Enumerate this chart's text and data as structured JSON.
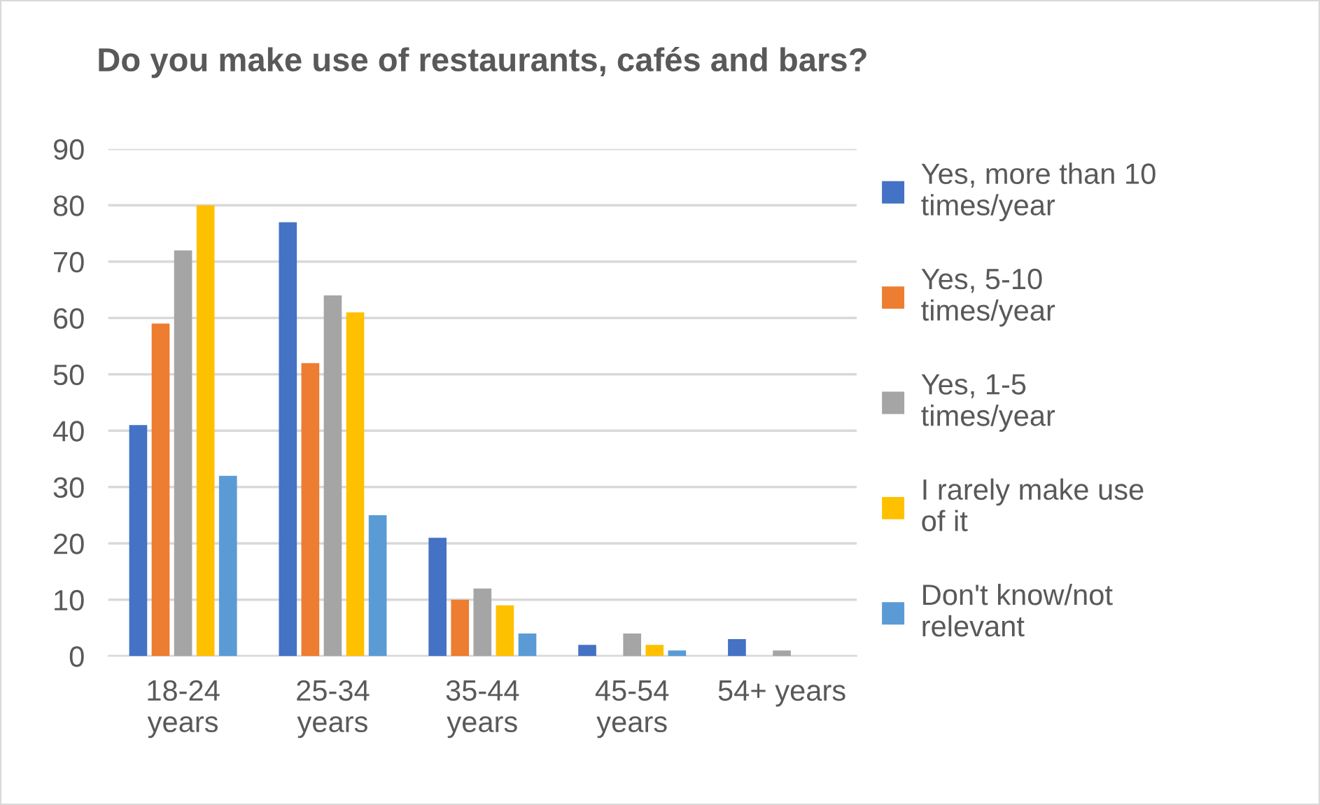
{
  "chart_data": {
    "type": "bar",
    "title": "Do you make use of restaurants, cafés and bars?",
    "categories": [
      "18-24 years",
      "25-34 years",
      "35-44 years",
      "45-54 years",
      "54+ years"
    ],
    "series": [
      {
        "name": "Yes, more than 10 times/year",
        "color": "#4472c4",
        "values": [
          41,
          77,
          21,
          2,
          3
        ]
      },
      {
        "name": "Yes, 5-10 times/year",
        "color": "#ed7d31",
        "values": [
          59,
          52,
          10,
          0,
          0
        ]
      },
      {
        "name": "Yes, 1-5 times/year",
        "color": "#a5a5a5",
        "values": [
          72,
          64,
          12,
          4,
          1
        ]
      },
      {
        "name": "I rarely make use of it",
        "color": "#ffc000",
        "values": [
          80,
          61,
          9,
          2,
          0
        ]
      },
      {
        "name": "Don't know/not relevant",
        "color": "#5b9bd5",
        "values": [
          32,
          25,
          4,
          1,
          0
        ]
      }
    ],
    "ylim": [
      0,
      90
    ],
    "yticks": [
      0,
      10,
      20,
      30,
      40,
      50,
      60,
      70,
      80,
      90
    ],
    "grid": "y",
    "legend": "right"
  }
}
